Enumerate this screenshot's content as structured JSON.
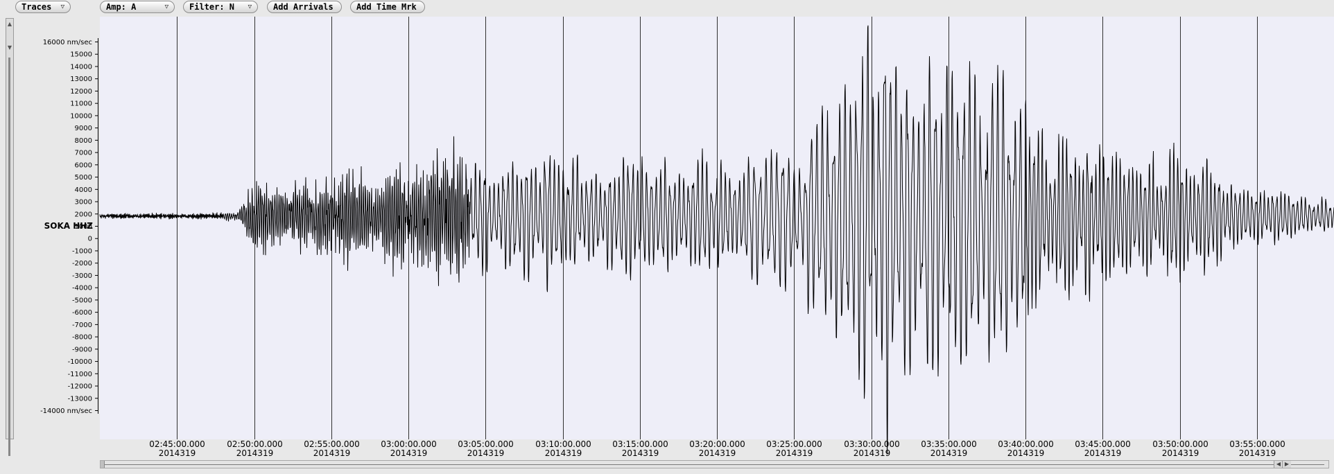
{
  "toolbar": {
    "traces_label": "Traces",
    "amp_label": "Amp: A",
    "filter_label": "Filter: N",
    "add_arrivals_label": "Add Arrivals",
    "add_time_mark_label": "Add Time Mrk",
    "caret": "▽"
  },
  "colors": {
    "plot_background": "#eeeef8",
    "trace": "#000000",
    "gridline": "#303030"
  },
  "chart_data": {
    "type": "line",
    "trace_label": "SOKA HHZ",
    "y_unit": "nm/sec",
    "y_top_label": "16000 nm/sec",
    "y_bottom_label": "-14000 nm/sec",
    "ylim": [
      -14000,
      16000
    ],
    "yticks": [
      -13000,
      -12000,
      -11000,
      -10000,
      -9000,
      -8000,
      -7000,
      -6000,
      -5000,
      -4000,
      -3000,
      -2000,
      -1000,
      0,
      1000,
      2000,
      3000,
      4000,
      5000,
      6000,
      7000,
      8000,
      9000,
      10000,
      11000,
      12000,
      13000,
      14000,
      15000
    ],
    "x_start": "02:40:00.000",
    "x_end": "04:00:00.000",
    "x_tick_date": "2014319",
    "xticks": [
      "02:45:00.000",
      "02:50:00.000",
      "02:55:00.000",
      "03:00:00.000",
      "03:05:00.000",
      "03:10:00.000",
      "03:15:00.000",
      "03:20:00.000",
      "03:25:00.000",
      "03:30:00.000",
      "03:35:00.000",
      "03:40:00.000",
      "03:45:00.000",
      "03:50:00.000",
      "03:55:00.000"
    ],
    "grid_vertical": true,
    "baseline": 1800,
    "envelope": {
      "time_minutes": [
        0,
        3,
        5,
        7,
        9,
        10,
        12,
        14,
        16,
        18,
        19,
        20,
        21,
        22,
        25,
        28,
        30,
        32,
        34,
        36,
        38,
        40,
        42,
        43,
        44,
        46,
        47,
        48,
        49,
        50,
        51,
        52,
        53,
        54,
        55,
        56,
        57,
        58,
        59,
        60,
        62,
        64,
        66,
        68,
        70,
        72,
        74,
        76,
        78,
        79
      ],
      "amplitude": [
        200,
        200,
        200,
        200,
        300,
        2500,
        1800,
        2500,
        3000,
        2000,
        3000,
        3500,
        4500,
        4000,
        4000,
        4500,
        5500,
        4000,
        4500,
        4000,
        4500,
        4000,
        4500,
        4500,
        5000,
        6000,
        8000,
        10000,
        12000,
        13500,
        14500,
        13500,
        11000,
        11500,
        12000,
        11000,
        10500,
        10000,
        9500,
        7500,
        6000,
        5500,
        4000,
        4000,
        4500,
        4000,
        2500,
        2000,
        1500,
        1500
      ]
    },
    "periods_seconds": [
      {
        "from": 0,
        "to": 8,
        "period": 4
      },
      {
        "from": 8,
        "to": 24,
        "period": 8
      },
      {
        "from": 24,
        "to": 42,
        "period": 18
      },
      {
        "from": 42,
        "to": 60,
        "period": 22
      },
      {
        "from": 60,
        "to": 80,
        "period": 16
      }
    ]
  }
}
